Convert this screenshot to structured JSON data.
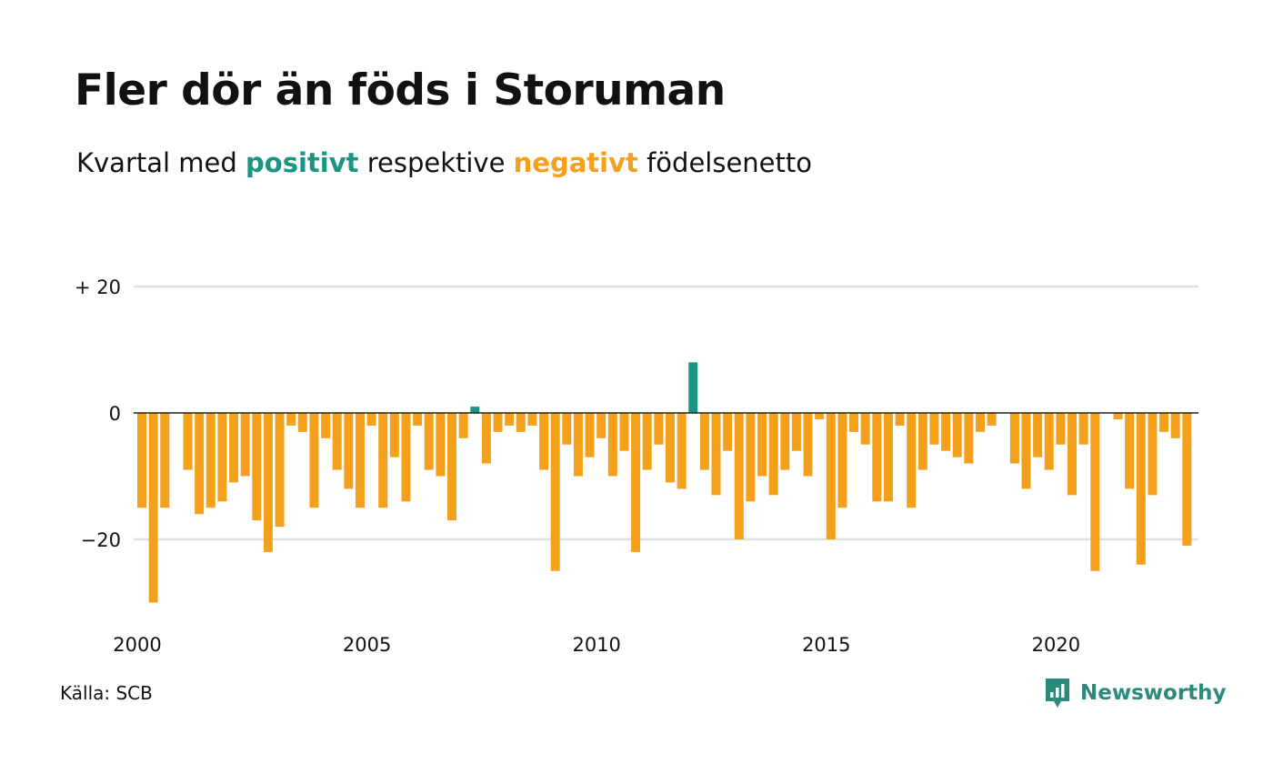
{
  "title": "Fler dör än föds i Storuman",
  "subtitle": {
    "prefix": "Kvartal med",
    "positive": "positivt",
    "middle": "respektive",
    "negative": "negativt",
    "suffix": "födelsenetto"
  },
  "source": "Källa: SCB",
  "brand": {
    "name": "Newsworthy",
    "icon": "chat-bubble-chart-icon"
  },
  "colors": {
    "positive": "#1a9583",
    "negative": "#f5a01b",
    "grid": "#e0e0e0",
    "zero_line": "#222222",
    "brand": "#2c8a7c"
  },
  "chart_data": {
    "type": "bar",
    "x_start": "2000 Q1",
    "xtick_labels": [
      "2000",
      "2005",
      "2010",
      "2015",
      "2020"
    ],
    "ytick_labels": [
      "+ 20",
      "0",
      "−20"
    ],
    "yticks": [
      20,
      0,
      -20
    ],
    "ylim": [
      -32,
      22
    ],
    "values": [
      -15,
      -30,
      -15,
      0,
      -9,
      -16,
      -15,
      -14,
      -11,
      -10,
      -17,
      -22,
      -18,
      -2,
      -3,
      -15,
      -4,
      -9,
      -12,
      -15,
      -2,
      -15,
      -7,
      -14,
      -2,
      -9,
      -10,
      -17,
      -4,
      1,
      -8,
      -3,
      -2,
      -3,
      -2,
      -9,
      -25,
      -5,
      -10,
      -7,
      -4,
      -10,
      -6,
      -22,
      -9,
      -5,
      -11,
      -12,
      8,
      -9,
      -13,
      -6,
      -20,
      -14,
      -10,
      -13,
      -9,
      -6,
      -10,
      -1,
      -20,
      -15,
      -3,
      -5,
      -14,
      -14,
      -2,
      -15,
      -9,
      -5,
      -6,
      -7,
      -8,
      -3,
      -2,
      0,
      -8,
      -12,
      -7,
      -9,
      -5,
      -13,
      -5,
      -25,
      0,
      -1,
      -12,
      -24,
      -13,
      -3,
      -4,
      -21
    ],
    "grid": true,
    "legend": "none"
  }
}
